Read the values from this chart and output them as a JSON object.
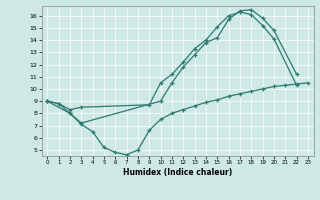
{
  "xlabel": "Humidex (Indice chaleur)",
  "bg_color": "#cde8e5",
  "line_color": "#2d7a6e",
  "xlim": [
    -0.5,
    23.5
  ],
  "ylim": [
    4.5,
    16.8
  ],
  "xticks": [
    0,
    1,
    2,
    3,
    4,
    5,
    6,
    7,
    8,
    9,
    10,
    11,
    12,
    13,
    14,
    15,
    16,
    17,
    18,
    19,
    20,
    21,
    22,
    23
  ],
  "yticks": [
    5,
    6,
    7,
    8,
    9,
    10,
    11,
    12,
    13,
    14,
    15,
    16
  ],
  "curve1_x": [
    0,
    1,
    2,
    3,
    9,
    10,
    11,
    12,
    13,
    14,
    15,
    16,
    17,
    18,
    19,
    20,
    22
  ],
  "curve1_y": [
    9.0,
    8.8,
    8.3,
    8.5,
    8.7,
    10.5,
    11.2,
    12.2,
    13.3,
    14.0,
    15.1,
    16.0,
    16.3,
    16.1,
    15.2,
    14.1,
    10.3
  ],
  "curve2_x": [
    0,
    2,
    3,
    10,
    11,
    12,
    13,
    14,
    15,
    16,
    17,
    18,
    19,
    20,
    22
  ],
  "curve2_y": [
    9.0,
    8.0,
    7.2,
    9.0,
    10.5,
    11.8,
    12.8,
    13.8,
    14.2,
    15.7,
    16.4,
    16.5,
    15.8,
    14.8,
    11.2
  ],
  "curve3_x": [
    0,
    1,
    2,
    3,
    4,
    5,
    6,
    7,
    8,
    9,
    10,
    11,
    12,
    13,
    14,
    15,
    16,
    17,
    18,
    19,
    20,
    21,
    22,
    23
  ],
  "curve3_y": [
    9.0,
    8.8,
    8.0,
    7.1,
    6.5,
    5.2,
    4.8,
    4.6,
    5.0,
    6.6,
    7.5,
    8.0,
    8.3,
    8.6,
    8.9,
    9.1,
    9.4,
    9.6,
    9.8,
    10.0,
    10.2,
    10.3,
    10.4,
    10.5
  ]
}
